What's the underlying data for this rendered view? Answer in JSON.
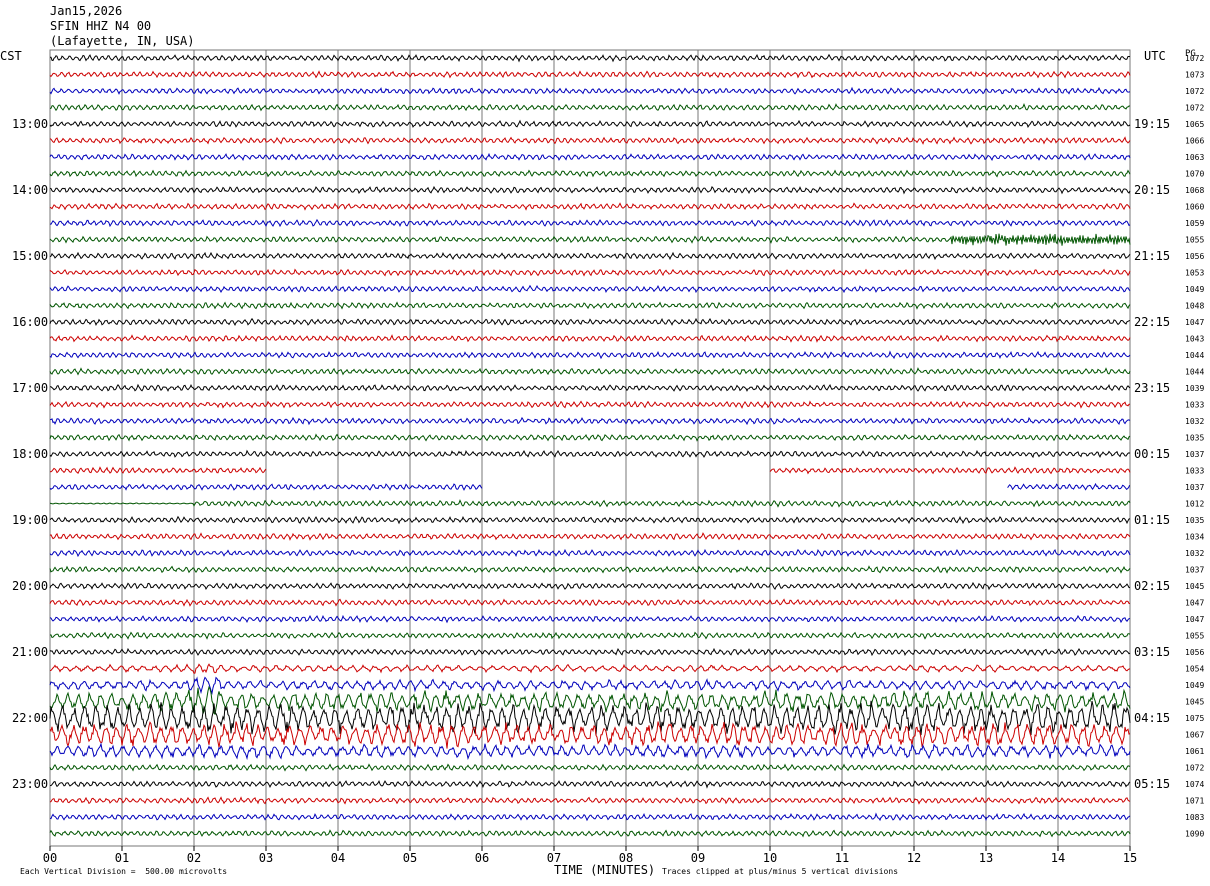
{
  "header": {
    "date": "Jan15,2026",
    "station": "SFIN HHZ N4 00",
    "location": "(Lafayette, IN, USA)"
  },
  "left_axis_title": "CST",
  "right_axis_title": "UTC",
  "right_col_title": "PG",
  "footer": {
    "scale": "Each Vertical Division =  500.00 microvolts",
    "xlabel": "TIME (MINUTES)",
    "clip_note": "Traces clipped at plus/minus 5 vertical divisions"
  },
  "chart_data": {
    "type": "line",
    "title": "SFIN HHZ N4 00",
    "xlabel": "TIME (MINUTES)",
    "x_ticks": [
      "00",
      "01",
      "02",
      "03",
      "04",
      "05",
      "06",
      "07",
      "08",
      "09",
      "10",
      "11",
      "12",
      "13",
      "14",
      "15"
    ],
    "xlim": [
      0,
      15
    ],
    "grid": true,
    "trace_colors": [
      "#000000",
      "#cc0000",
      "#0000bb",
      "#005500"
    ],
    "left_hour_labels": [
      "13:00",
      "14:00",
      "15:00",
      "16:00",
      "17:00",
      "18:00",
      "19:00",
      "20:00",
      "21:00",
      "22:00",
      "23:00"
    ],
    "right_hour_labels": [
      "19:15",
      "20:15",
      "21:15",
      "22:15",
      "23:15",
      "00:15",
      "01:15",
      "02:15",
      "03:15",
      "04:15",
      "05:15"
    ],
    "pg_values": [
      "1072",
      "1073",
      "1072",
      "1072",
      "1065",
      "1066",
      "1063",
      "1070",
      "1068",
      "1060",
      "1059",
      "1055",
      "1056",
      "1053",
      "1049",
      "1048",
      "1047",
      "1043",
      "1044",
      "1044",
      "1039",
      "1033",
      "1032",
      "1035",
      "1037",
      "1033",
      "1037",
      "1012",
      "1035",
      "1034",
      "1032",
      "1037",
      "1045",
      "1047",
      "1047",
      "1055",
      "1056",
      "1054",
      "1049",
      "1045",
      "1075",
      "1067",
      "1061",
      "1072",
      "1074",
      "1071",
      "1083",
      "1090"
    ],
    "activity": {
      "quake_rows": [
        37,
        38,
        39,
        40,
        41,
        42
      ],
      "gap_rows": [
        25,
        26,
        27
      ],
      "noise_row": 11
    }
  }
}
